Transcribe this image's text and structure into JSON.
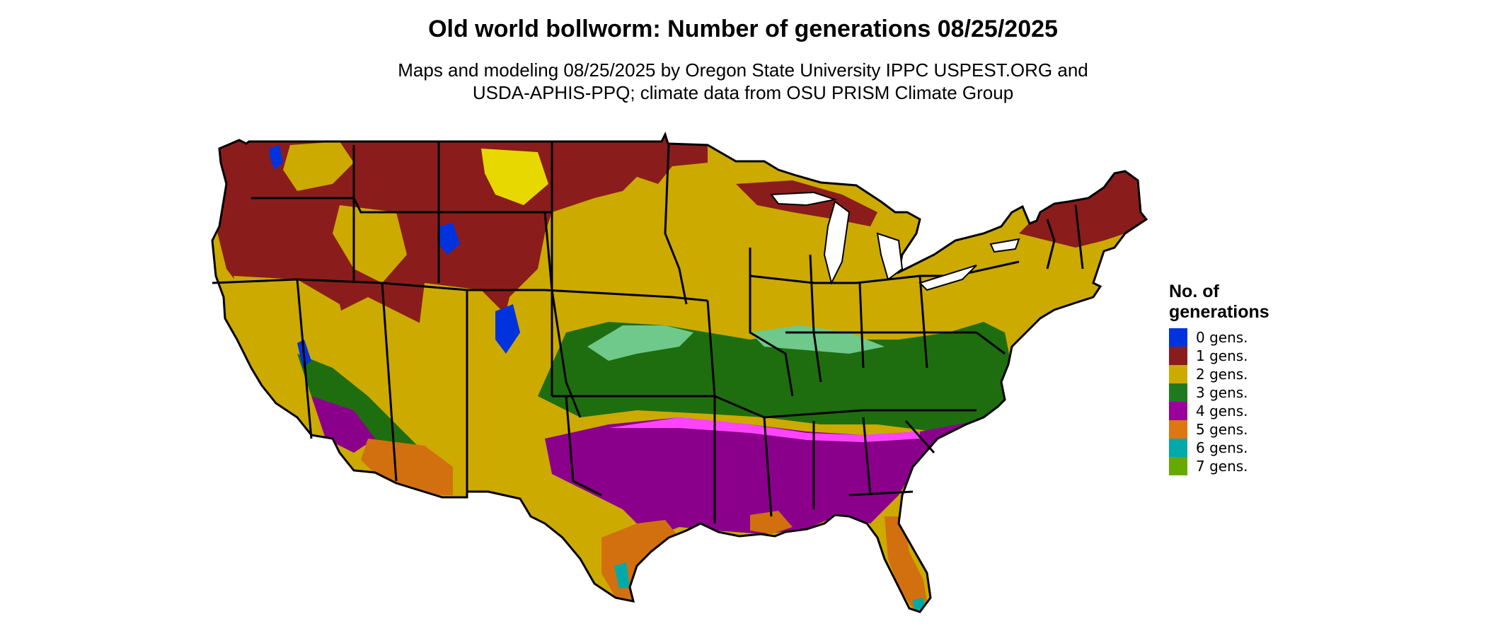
{
  "title": "Old world bollworm: Number of generations 08/25/2025",
  "subtitle_line1": "Maps and modeling 08/25/2025 by Oregon State University IPPC USPEST.ORG and",
  "subtitle_line2": "USDA-APHIS-PPQ; climate data from OSU PRISM Climate Group",
  "legend": {
    "title_line1": "No. of",
    "title_line2": "generations",
    "items": [
      {
        "label": "0 gens.",
        "color": "#0033dd"
      },
      {
        "label": "1 gens.",
        "color": "#8b1c1c"
      },
      {
        "label": "2 gens.",
        "color": "#ccaa00"
      },
      {
        "label": "3 gens.",
        "color": "#1e7a1e"
      },
      {
        "label": "4 gens.",
        "color": "#990099"
      },
      {
        "label": "5 gens.",
        "color": "#dd7711"
      },
      {
        "label": "6 gens.",
        "color": "#00aaaa"
      },
      {
        "label": "7 gens.",
        "color": "#66aa00"
      }
    ]
  },
  "map_colors": {
    "gen0": "#0033dd",
    "gen1": "#8b1c1c",
    "gen2": "#ccaa00",
    "gen3": "#1e6e10",
    "gen4": "#8b008b",
    "gen5": "#d2700f",
    "gen6": "#00aaaa",
    "gen2_light": "#e6d800",
    "gen3_light": "#6fc98a",
    "gen4_light": "#ff44ff",
    "boundary": "#000000"
  }
}
